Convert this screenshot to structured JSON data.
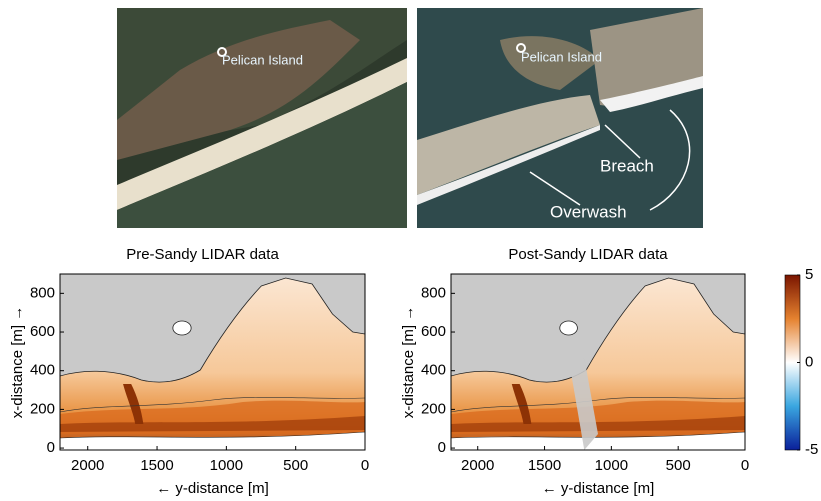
{
  "photos": [
    {
      "label": "Pelican Island"
    },
    {
      "label": "Pelican Island",
      "annotations": [
        "Breach",
        "Overwash"
      ]
    }
  ],
  "chart_data": [
    {
      "type": "heatmap",
      "title": "Pre-Sandy LIDAR data",
      "x_label": "← y-distance [m]",
      "y_label": "x-distance [m] →",
      "xlim": [
        2200,
        0
      ],
      "xticks": [
        2000,
        1500,
        1000,
        500,
        0
      ],
      "ylim": [
        -10,
        900
      ],
      "yticks": [
        0,
        200,
        400,
        600,
        800
      ]
    },
    {
      "type": "heatmap",
      "title": "Post-Sandy LIDAR data",
      "x_label": "← y-distance [m]",
      "y_label": "x-distance [m] →",
      "xlim": [
        2200,
        0
      ],
      "xticks": [
        2000,
        1500,
        1000,
        500,
        0
      ],
      "ylim": [
        -10,
        900
      ],
      "yticks": [
        0,
        200,
        400,
        600,
        800
      ]
    }
  ],
  "colorbar": {
    "clim": [
      -5,
      5
    ],
    "ticks": [
      5,
      0,
      -5
    ]
  }
}
